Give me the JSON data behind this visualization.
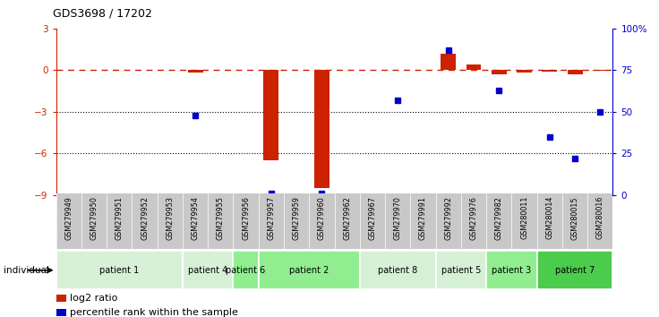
{
  "title": "GDS3698 / 17202",
  "samples": [
    "GSM279949",
    "GSM279950",
    "GSM279951",
    "GSM279952",
    "GSM279953",
    "GSM279954",
    "GSM279955",
    "GSM279956",
    "GSM279957",
    "GSM279959",
    "GSM279960",
    "GSM279962",
    "GSM279967",
    "GSM279970",
    "GSM279991",
    "GSM279992",
    "GSM279976",
    "GSM279982",
    "GSM280011",
    "GSM280014",
    "GSM280015",
    "GSM280016"
  ],
  "log2_ratio": [
    0.0,
    0.0,
    0.0,
    0.0,
    0.0,
    -0.15,
    0.0,
    0.0,
    -6.5,
    0.0,
    -8.5,
    0.0,
    0.05,
    0.0,
    0.0,
    1.2,
    0.4,
    -0.3,
    -0.15,
    -0.1,
    -0.3,
    -0.05
  ],
  "percentile_rank": [
    null,
    null,
    null,
    null,
    null,
    48,
    null,
    null,
    1,
    null,
    1,
    null,
    null,
    57,
    null,
    87,
    null,
    63,
    null,
    35,
    22,
    50
  ],
  "patients": [
    {
      "label": "patient 1",
      "start": 0,
      "end": 5,
      "color": "#d6f0d6"
    },
    {
      "label": "patient 4",
      "start": 5,
      "end": 7,
      "color": "#d6f0d6"
    },
    {
      "label": "patient 6",
      "start": 7,
      "end": 8,
      "color": "#90ee90"
    },
    {
      "label": "patient 2",
      "start": 8,
      "end": 12,
      "color": "#90ee90"
    },
    {
      "label": "patient 8",
      "start": 12,
      "end": 15,
      "color": "#d6f0d6"
    },
    {
      "label": "patient 5",
      "start": 15,
      "end": 17,
      "color": "#d6f0d6"
    },
    {
      "label": "patient 3",
      "start": 17,
      "end": 19,
      "color": "#90ee90"
    },
    {
      "label": "patient 7",
      "start": 19,
      "end": 22,
      "color": "#4ccc4c"
    }
  ],
  "ylim_left": [
    -9,
    3
  ],
  "ylim_right": [
    0,
    100
  ],
  "yticks_left": [
    3,
    0,
    -3,
    -6,
    -9
  ],
  "yticks_right": [
    0,
    25,
    50,
    75,
    100
  ],
  "yticklabels_right": [
    "0",
    "25",
    "50",
    "75",
    "100%"
  ],
  "bar_color": "#cc2200",
  "dot_color": "#0000cc",
  "dashed_line_color": "#cc2200",
  "background_plot": "#ffffff",
  "background_sample": "#c8c8c8"
}
